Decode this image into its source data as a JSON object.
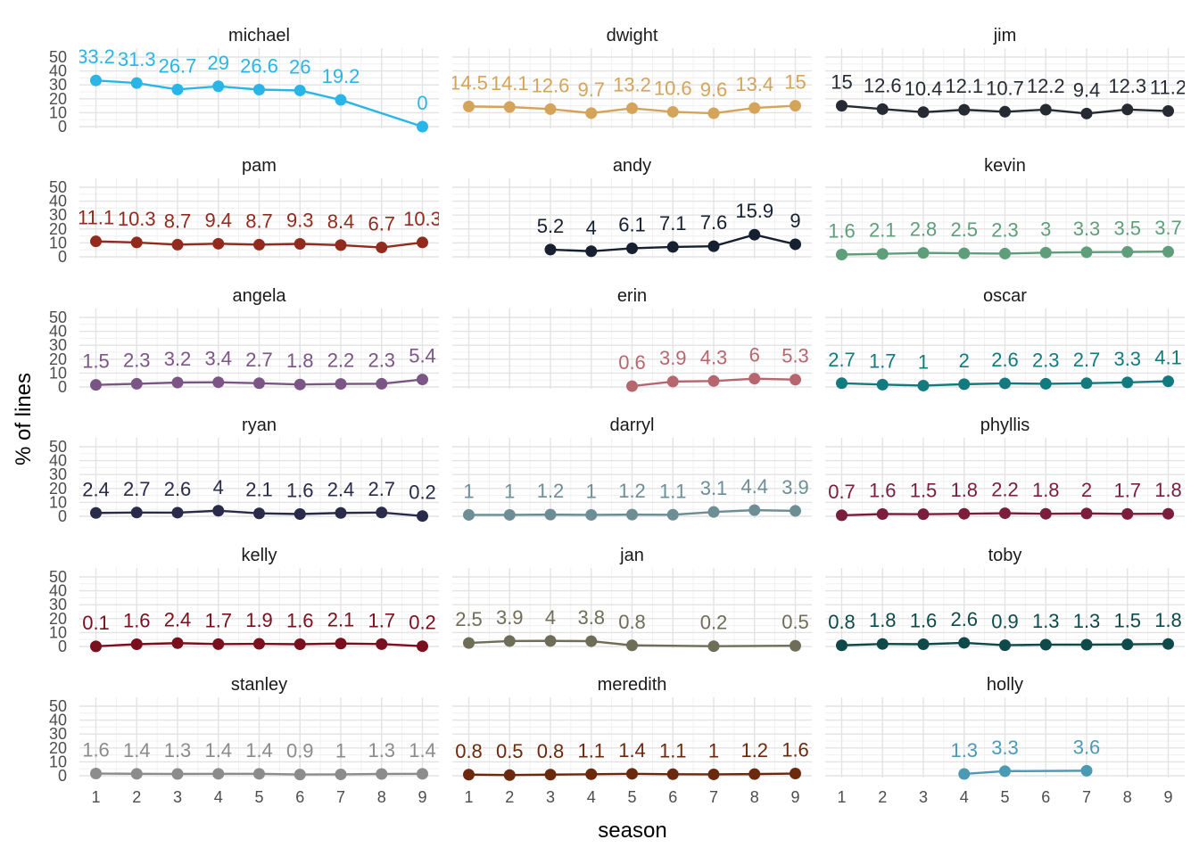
{
  "chart_data": {
    "type": "line",
    "xlabel": "season",
    "ylabel": "% of lines",
    "x": [
      1,
      2,
      3,
      4,
      5,
      6,
      7,
      8,
      9
    ],
    "ylim": [
      0,
      50
    ],
    "yticks": [
      0,
      10,
      20,
      30,
      40,
      50
    ],
    "grid": true,
    "legend": "none",
    "panels": [
      {
        "name": "michael",
        "color": "#29B5E8",
        "values": [
          33.2,
          31.3,
          26.7,
          29,
          26.6,
          26,
          19.2,
          null,
          0
        ],
        "labels": [
          "33.2",
          "31.3",
          "26.7",
          "29",
          "26.6",
          "26",
          "19.2",
          "",
          "0"
        ]
      },
      {
        "name": "dwight",
        "color": "#D4A45A",
        "values": [
          14.5,
          14.1,
          12.6,
          9.7,
          13.2,
          10.6,
          9.6,
          13.4,
          15
        ],
        "labels": [
          "14.5",
          "14.1",
          "12.6",
          "9.7",
          "13.2",
          "10.6",
          "9.6",
          "13.4",
          "15"
        ]
      },
      {
        "name": "jim",
        "color": "#262A33",
        "values": [
          15,
          12.6,
          10.4,
          12.1,
          10.7,
          12.2,
          9.4,
          12.3,
          11.2
        ],
        "labels": [
          "15",
          "12.6",
          "10.4",
          "12.1",
          "10.7",
          "12.2",
          "9.4",
          "12.3",
          "11.2"
        ]
      },
      {
        "name": "pam",
        "color": "#922B1E",
        "values": [
          11.1,
          10.3,
          8.7,
          9.4,
          8.7,
          9.3,
          8.4,
          6.7,
          10.3
        ],
        "labels": [
          "11.1",
          "10.3",
          "8.7",
          "9.4",
          "8.7",
          "9.3",
          "8.4",
          "6.7",
          "10.3"
        ]
      },
      {
        "name": "andy",
        "color": "#162030",
        "values": [
          null,
          null,
          5.2,
          4,
          6.1,
          7.1,
          7.6,
          15.9,
          9
        ],
        "labels": [
          "",
          "",
          "5.2",
          "4",
          "6.1",
          "7.1",
          "7.6",
          "15.9",
          "9"
        ]
      },
      {
        "name": "kevin",
        "color": "#5E9E7A",
        "values": [
          1.6,
          2.1,
          2.8,
          2.5,
          2.3,
          3,
          3.3,
          3.5,
          3.7
        ],
        "labels": [
          "1.6",
          "2.1",
          "2.8",
          "2.5",
          "2.3",
          "3",
          "3.3",
          "3.5",
          "3.7"
        ]
      },
      {
        "name": "angela",
        "color": "#7B5585",
        "values": [
          1.5,
          2.3,
          3.2,
          3.4,
          2.7,
          1.8,
          2.2,
          2.3,
          5.4
        ],
        "labels": [
          "1.5",
          "2.3",
          "3.2",
          "3.4",
          "2.7",
          "1.8",
          "2.2",
          "2.3",
          "5.4"
        ]
      },
      {
        "name": "erin",
        "color": "#B8666E",
        "values": [
          null,
          null,
          null,
          null,
          0.6,
          3.9,
          4.3,
          6,
          5.3
        ],
        "labels": [
          "",
          "",
          "",
          "",
          "0.6",
          "3.9",
          "4.3",
          "6",
          "5.3"
        ]
      },
      {
        "name": "oscar",
        "color": "#137A7F",
        "values": [
          2.7,
          1.7,
          1,
          2,
          2.6,
          2.3,
          2.7,
          3.3,
          4.1
        ],
        "labels": [
          "2.7",
          "1.7",
          "1",
          "2",
          "2.6",
          "2.3",
          "2.7",
          "3.3",
          "4.1"
        ]
      },
      {
        "name": "ryan",
        "color": "#2A2A4A",
        "values": [
          2.4,
          2.7,
          2.6,
          4,
          2.1,
          1.6,
          2.4,
          2.7,
          0.2
        ],
        "labels": [
          "2.4",
          "2.7",
          "2.6",
          "4",
          "2.1",
          "1.6",
          "2.4",
          "2.7",
          "0.2"
        ]
      },
      {
        "name": "darryl",
        "color": "#6E8E96",
        "values": [
          1,
          1,
          1.2,
          1,
          1.2,
          1.1,
          3.1,
          4.4,
          3.9
        ],
        "labels": [
          "1",
          "1",
          "1.2",
          "1",
          "1.2",
          "1.1",
          "3.1",
          "4.4",
          "3.9"
        ]
      },
      {
        "name": "phyllis",
        "color": "#7A1E3C",
        "values": [
          0.7,
          1.6,
          1.5,
          1.8,
          2.2,
          1.8,
          2,
          1.7,
          1.8
        ],
        "labels": [
          "0.7",
          "1.6",
          "1.5",
          "1.8",
          "2.2",
          "1.8",
          "2",
          "1.7",
          "1.8"
        ]
      },
      {
        "name": "kelly",
        "color": "#7A0F1E",
        "values": [
          0.1,
          1.6,
          2.4,
          1.7,
          1.9,
          1.6,
          2.1,
          1.7,
          0.2
        ],
        "labels": [
          "0.1",
          "1.6",
          "2.4",
          "1.7",
          "1.9",
          "1.6",
          "2.1",
          "1.7",
          "0.2"
        ]
      },
      {
        "name": "jan",
        "color": "#6E6E58",
        "values": [
          2.5,
          3.9,
          4,
          3.8,
          0.8,
          null,
          0.2,
          null,
          0.5
        ],
        "labels": [
          "2.5",
          "3.9",
          "4",
          "3.8",
          "0.8",
          "",
          "0.2",
          "",
          "0.5"
        ]
      },
      {
        "name": "toby",
        "color": "#0F4A4A",
        "values": [
          0.8,
          1.8,
          1.6,
          2.6,
          0.9,
          1.3,
          1.3,
          1.5,
          1.8
        ],
        "labels": [
          "0.8",
          "1.8",
          "1.6",
          "2.6",
          "0.9",
          "1.3",
          "1.3",
          "1.5",
          "1.8"
        ]
      },
      {
        "name": "stanley",
        "color": "#8C8C8C",
        "values": [
          1.6,
          1.4,
          1.3,
          1.4,
          1.4,
          0.9,
          1,
          1.3,
          1.4
        ],
        "labels": [
          "1.6",
          "1.4",
          "1.3",
          "1.4",
          "1.4",
          "0.9",
          "1",
          "1.3",
          "1.4"
        ]
      },
      {
        "name": "meredith",
        "color": "#6B2A0E",
        "values": [
          0.8,
          0.5,
          0.8,
          1.1,
          1.4,
          1.1,
          1,
          1.2,
          1.6
        ],
        "labels": [
          "0.8",
          "0.5",
          "0.8",
          "1.1",
          "1.4",
          "1.1",
          "1",
          "1.2",
          "1.6"
        ]
      },
      {
        "name": "holly",
        "color": "#4B9AB4",
        "values": [
          null,
          null,
          null,
          1.3,
          3.3,
          null,
          3.6,
          null,
          null
        ],
        "labels": [
          "",
          "",
          "",
          "1.3",
          "3.3",
          "",
          "3.6",
          "",
          ""
        ]
      }
    ]
  }
}
